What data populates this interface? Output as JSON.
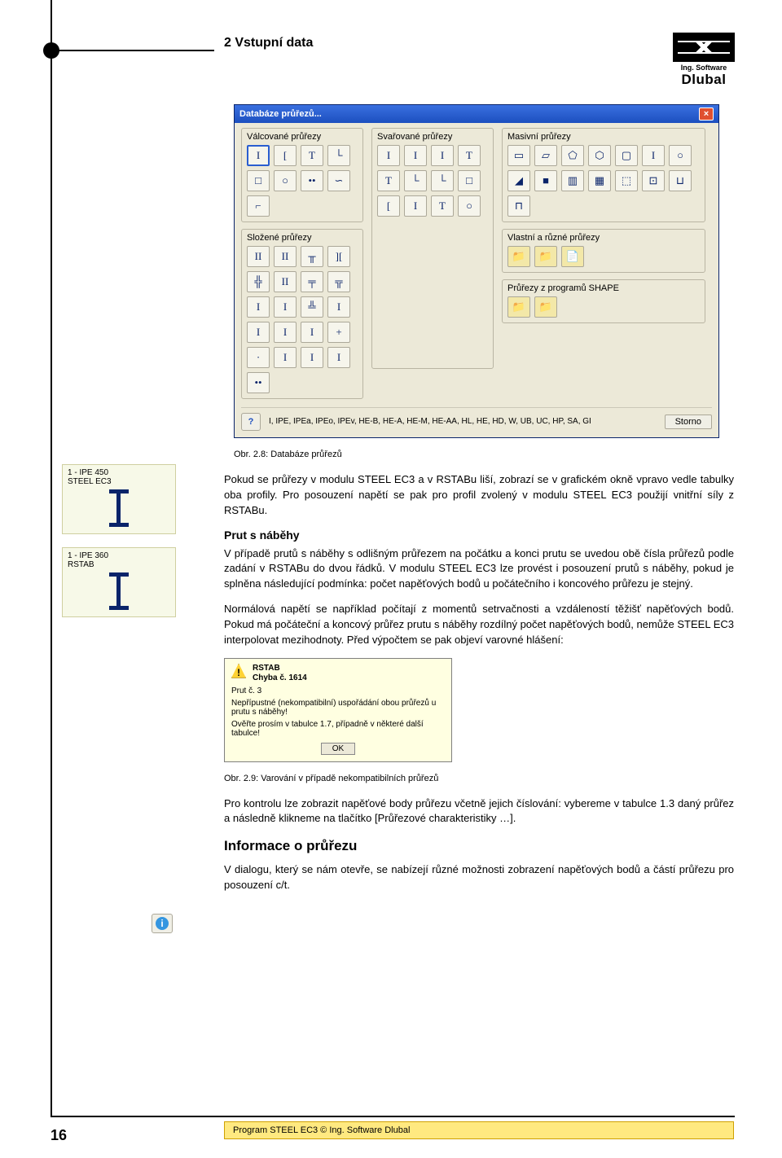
{
  "page": {
    "number": "16",
    "footer": "Program STEEL EC3 © Ing. Software Dlubal"
  },
  "header": {
    "section": "2 Vstupní data",
    "brand_small": "Ing. Software",
    "brand": "Dlubal"
  },
  "dialog": {
    "title": "Databáze průřezů...",
    "close": "×",
    "groups": {
      "valcovane": "Válcované průřezy",
      "svarovane": "Svařované průřezy",
      "masivni": "Masivní průřezy",
      "slozene": "Složené průřezy",
      "vlastni": "Vlastní a různé průřezy",
      "shape": "Průřezy z programů SHAPE"
    },
    "help": "?",
    "footer_text": "I, IPE, IPEa, IPEo, IPEv, HE-B, HE-A, HE-M, HE-AA, HL, HE, HD, W, UB, UC, HP, SA, GI",
    "storno": "Storno"
  },
  "captions": {
    "c28": "Obr. 2.8: Databáze průřezů",
    "c29": "Obr. 2.9: Varování v případě nekompatibilních průřezů"
  },
  "text": {
    "p1": "Pokud se průřezy v modulu STEEL EC3 a v RSTABu liší, zobrazí se v grafickém okně vpravo vedle tabulky oba profily. Pro posouzení napětí se pak pro profil zvolený v modulu STEEL EC3 použijí vnitřní síly z RSTABu.",
    "h_prut": "Prut s náběhy",
    "p2": "V případě prutů s náběhy s odlišným průřezem na počátku a konci prutu se uvedou obě čísla průřezů podle zadání v RSTABu do dvou řádků. V modulu STEEL EC3 lze provést i posouzení prutů s náběhy, pokud je splněna následující podmínka: počet napěťových bodů u počátečního i koncového průřezu je stejný.",
    "p3": "Normálová napětí se například počítají z momentů setrvačnosti a vzdáleností těžišť napěťových bodů. Pokud má počáteční a koncový průřez prutu s náběhy rozdílný počet napěťových bodů, nemůže STEEL EC3 interpolovat mezihodnoty. Před výpočtem se pak objeví varovné hlášení:",
    "p4": "Pro kontrolu lze zobrazit napěťové body průřezu včetně jejich číslování: vybereme v tabulce 1.3 daný průřez a následně klikneme na tlačítko [Průřezové charakteristiky …].",
    "h_info": "Informace o průřezu",
    "p5": "V dialogu, který se nám otevře, se nabízejí různé možnosti zobrazení napěťových bodů a částí průřezu pro posouzení c/t."
  },
  "warning": {
    "app": "RSTAB",
    "err": "Chyba č. 1614",
    "line1": "Prut č. 3",
    "line2": "Nepřípustné (nekompatibilní) uspořádání obou průřezů u prutu s náběhy!",
    "line3": "Ověřte prosím v tabulce 1.7, případně v některé další tabulce!",
    "ok": "OK"
  },
  "thumbs": {
    "a": {
      "label1": "1 - IPE 450",
      "label2": "STEEL EC3"
    },
    "b": {
      "label1": "1 - IPE 360",
      "label2": "RSTAB"
    }
  },
  "icons": {
    "valcovane": [
      "I",
      "[",
      "T",
      "└",
      "□",
      "○",
      "••",
      "∽",
      "⌐"
    ],
    "svarovane": [
      "I",
      "I",
      "I",
      "T",
      "T",
      "└",
      "└",
      "□",
      "[",
      "I",
      "T",
      "○"
    ],
    "masivni_top": [
      "▭",
      "▱",
      "⬠",
      "⬡",
      "▢",
      "I",
      "○",
      "◢",
      "■",
      "▥",
      "▦",
      "⬚",
      "⊡",
      "⊔",
      "⊓"
    ],
    "slozene": [
      "II",
      "II",
      "╥",
      "][",
      "╬",
      "II",
      "╤",
      "╦",
      "I",
      "I",
      "╩",
      "I",
      "I",
      "I",
      "I",
      "+",
      "·",
      "I",
      "I",
      "I",
      "••"
    ],
    "vlastni": [
      "📁",
      "📁",
      "📄"
    ],
    "shape": [
      "📁",
      "📁"
    ]
  }
}
